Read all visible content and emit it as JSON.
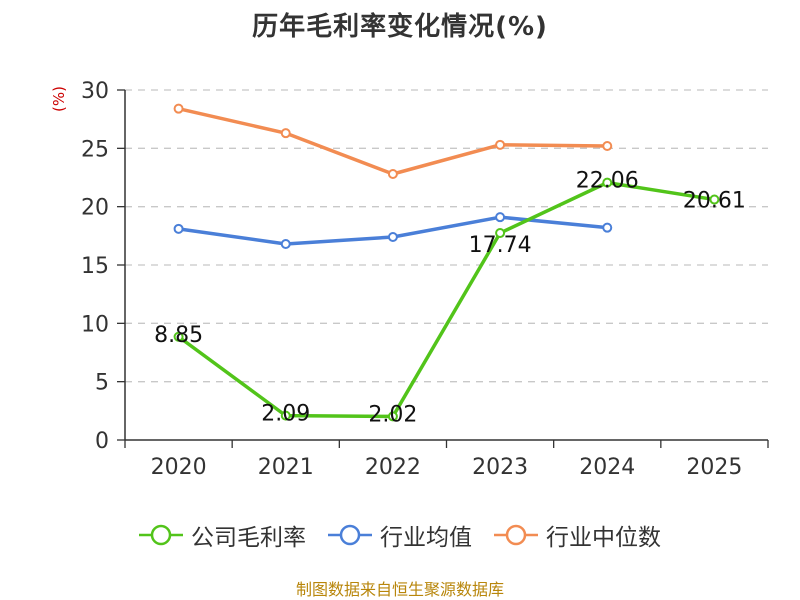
{
  "chart_data": {
    "type": "line",
    "title": "历年毛利率变化情况(%)",
    "ylabel": "(%)",
    "xlabel": "",
    "categories": [
      "2020",
      "2021",
      "2022",
      "2023",
      "2024",
      "2025"
    ],
    "ylim": [
      0,
      30
    ],
    "yticks": [
      0,
      5,
      10,
      15,
      20,
      25,
      30
    ],
    "grid": true,
    "legend_position": "bottom",
    "series": [
      {
        "name": "公司毛利率",
        "color": "#52c41a",
        "values": [
          8.85,
          2.09,
          2.02,
          17.74,
          22.06,
          20.61
        ],
        "labels": [
          "8.85",
          "2.09",
          "2.02",
          "17.74",
          "22.06",
          "20.61"
        ]
      },
      {
        "name": "行业均值",
        "color": "#4a7fd8",
        "values": [
          18.1,
          16.8,
          17.4,
          19.1,
          18.2,
          null
        ]
      },
      {
        "name": "行业中位数",
        "color": "#f28c52",
        "values": [
          28.4,
          26.3,
          22.8,
          25.3,
          25.2,
          null
        ]
      }
    ]
  },
  "source": "制图数据来自恒生聚源数据库"
}
